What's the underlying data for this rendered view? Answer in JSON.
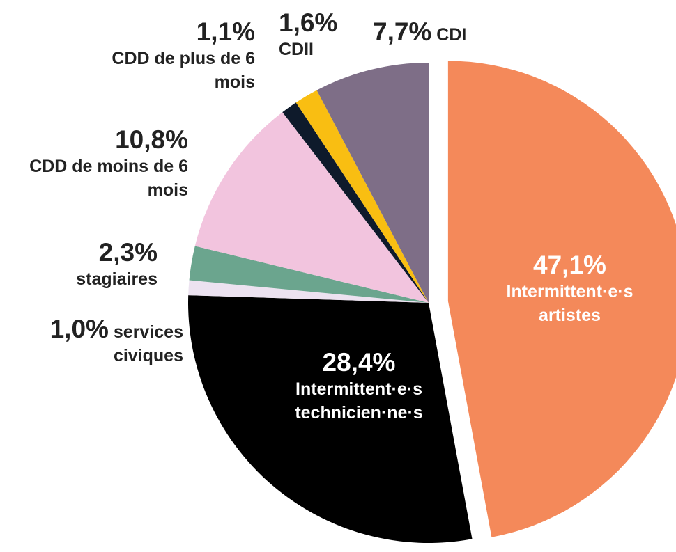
{
  "chart_data": {
    "type": "pie",
    "categories": [
      "Intermittent·e·s artistes",
      "Intermittent·e·s technicien·ne·s",
      "services civiques",
      "stagiaires",
      "CDD de moins de 6 mois",
      "CDD de plus de 6 mois",
      "CDII",
      "CDI"
    ],
    "values": [
      47.1,
      28.4,
      1.0,
      2.3,
      10.8,
      1.1,
      1.6,
      7.7
    ],
    "value_labels": [
      "47,1%",
      "28,4%",
      "1,0%",
      "2,3%",
      "10,8%",
      "1,1%",
      "1,6%",
      "7,7%"
    ],
    "colors": [
      "#f4895a",
      "#000000",
      "#ece2f0",
      "#6ba58e",
      "#f2c4de",
      "#0e1a2b",
      "#f9be12",
      "#7e6e87"
    ]
  }
}
